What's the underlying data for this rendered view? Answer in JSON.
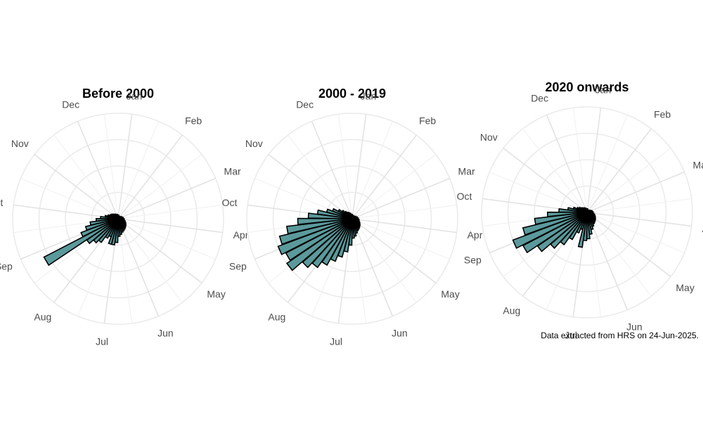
{
  "caption": "Data extracted from HRS on 24-Jun-2025.",
  "colors": {
    "bar_fill": "#5b9a9c",
    "bar_stroke": "#000000",
    "grid": "#ebebeb",
    "label": "#4d4d4d"
  },
  "chart_data": [
    {
      "type": "bar",
      "polar": true,
      "title": "Before 2000",
      "theta_labels": [
        "Jan",
        "Feb",
        "Mar",
        "Apr",
        "May",
        "Jun",
        "Jul",
        "Aug",
        "Sep",
        "Oct",
        "Nov",
        "Dec"
      ],
      "x_unit": "week of year",
      "x": [
        1,
        2,
        3,
        4,
        5,
        6,
        7,
        8,
        9,
        10,
        11,
        12,
        13,
        14,
        15,
        16,
        17,
        18,
        19,
        20,
        21,
        22,
        23,
        24,
        25,
        26,
        27,
        28,
        29,
        30,
        31,
        32,
        33,
        34,
        35,
        36,
        37,
        38,
        39,
        40,
        41,
        42,
        43,
        44,
        45,
        46,
        47,
        48,
        49,
        50,
        51,
        52
      ],
      "values": [
        0.04,
        0.03,
        0.03,
        0.03,
        0.03,
        0.03,
        0.04,
        0.04,
        0.05,
        0.05,
        0.06,
        0.06,
        0.07,
        0.07,
        0.08,
        0.09,
        0.1,
        0.11,
        0.12,
        0.13,
        0.14,
        0.15,
        0.16,
        0.18,
        0.2,
        0.27,
        0.3,
        0.3,
        0.22,
        0.25,
        0.33,
        0.37,
        0.43,
        0.95,
        0.45,
        0.38,
        0.32,
        0.25,
        0.2,
        0.15,
        0.12,
        0.1,
        0.09,
        0.08,
        0.07,
        0.06,
        0.06,
        0.05,
        0.05,
        0.05,
        0.04,
        0.04
      ],
      "rlim": [
        0,
        1.2
      ]
    },
    {
      "type": "bar",
      "polar": true,
      "title": "2000 - 2019",
      "theta_labels": [
        "Jan",
        "Feb",
        "Mar",
        "Apr",
        "May",
        "Jun",
        "Jul",
        "Aug",
        "Sep",
        "Oct",
        "Nov",
        "Dec"
      ],
      "x_unit": "week of year",
      "x": [
        1,
        2,
        3,
        4,
        5,
        6,
        7,
        8,
        9,
        10,
        11,
        12,
        13,
        14,
        15,
        16,
        17,
        18,
        19,
        20,
        21,
        22,
        23,
        24,
        25,
        26,
        27,
        28,
        29,
        30,
        31,
        32,
        33,
        34,
        35,
        36,
        37,
        38,
        39,
        40,
        41,
        42,
        43,
        44,
        45,
        46,
        47,
        48,
        49,
        50,
        51,
        52
      ],
      "values": [
        0.04,
        0.04,
        0.03,
        0.03,
        0.03,
        0.04,
        0.04,
        0.05,
        0.05,
        0.06,
        0.06,
        0.07,
        0.07,
        0.08,
        0.08,
        0.09,
        0.1,
        0.11,
        0.12,
        0.13,
        0.14,
        0.15,
        0.17,
        0.2,
        0.22,
        0.3,
        0.38,
        0.45,
        0.52,
        0.6,
        0.68,
        0.75,
        0.9,
        0.85,
        0.9,
        0.85,
        0.75,
        0.62,
        0.5,
        0.4,
        0.3,
        0.24,
        0.18,
        0.14,
        0.11,
        0.09,
        0.08,
        0.07,
        0.06,
        0.05,
        0.05,
        0.04
      ],
      "rlim": [
        0,
        1.2
      ]
    },
    {
      "type": "bar",
      "polar": true,
      "title": "2020 onwards",
      "theta_labels": [
        "Jan",
        "Feb",
        "Mar",
        "Apr",
        "May",
        "Jun",
        "Jul",
        "Aug",
        "Sep",
        "Oct",
        "Nov",
        "Dec"
      ],
      "x_unit": "week of year",
      "x": [
        1,
        2,
        3,
        4,
        5,
        6,
        7,
        8,
        9,
        10,
        11,
        12,
        13,
        14,
        15,
        16,
        17,
        18,
        19,
        20,
        21,
        22,
        23,
        24,
        25,
        26,
        27,
        28,
        29,
        30,
        31,
        32,
        33,
        34,
        35,
        36,
        37,
        38,
        39,
        40,
        41,
        42,
        43,
        44,
        45,
        46,
        47,
        48,
        49,
        50,
        51,
        52
      ],
      "values": [
        0.04,
        0.03,
        0.03,
        0.03,
        0.03,
        0.03,
        0.04,
        0.04,
        0.05,
        0.06,
        0.06,
        0.07,
        0.07,
        0.08,
        0.09,
        0.1,
        0.11,
        0.12,
        0.13,
        0.14,
        0.15,
        0.17,
        0.2,
        0.25,
        0.3,
        0.32,
        0.4,
        0.2,
        0.25,
        0.35,
        0.45,
        0.55,
        0.68,
        0.82,
        0.9,
        0.75,
        0.6,
        0.45,
        0.32,
        0.22,
        0.16,
        0.12,
        0.1,
        0.08,
        0.07,
        0.06,
        0.06,
        0.05,
        0.05,
        0.04,
        0.04,
        0.04
      ],
      "rlim": [
        0,
        1.2
      ]
    }
  ]
}
